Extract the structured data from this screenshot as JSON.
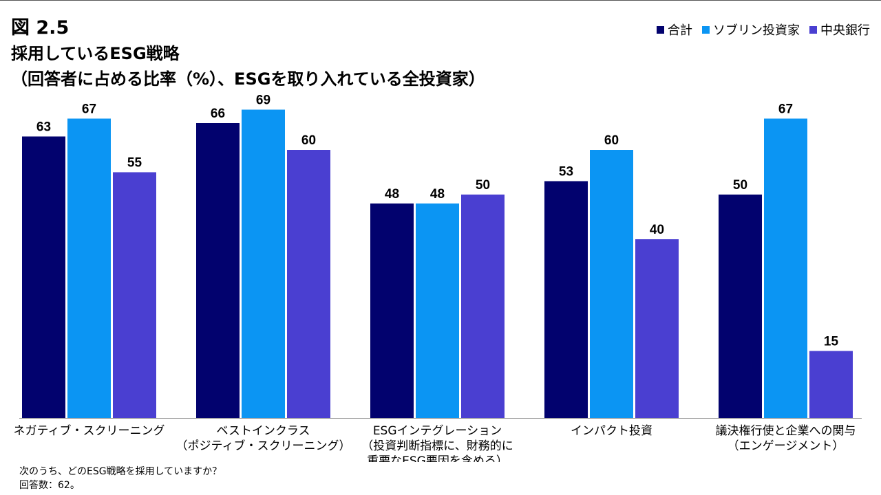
{
  "figure_label": "図 2.5",
  "title_line1": "採用しているESG戦略",
  "title_line2": "（回答者に占める比率（%）、ESGを取り入れている全投資家）",
  "footnote_line1": "次のうち、どのESG戦略を採用していますか？",
  "footnote_line2": "回答数：62。",
  "colors": {
    "total": "#02026e",
    "sovereign": "#0b95f3",
    "central_bank": "#4a3fd1",
    "axis": "#9a9a9a",
    "topline": "#555555"
  },
  "chart_data": {
    "type": "bar",
    "title": "採用しているESG戦略",
    "subtitle": "（回答者に占める比率（%）、ESGを取り入れている全投資家）",
    "xlabel": "",
    "ylabel": "",
    "ylim": [
      0,
      75
    ],
    "grid": false,
    "legend_position": "top-right",
    "categories": [
      {
        "lines": [
          "ネガティブ・スクリーニング"
        ]
      },
      {
        "lines": [
          "ベストインクラス",
          "（ポジティブ・スクリーニング）"
        ]
      },
      {
        "lines": [
          "ESGインテグレーション",
          "（投資判断指標に、財務的に",
          "重要なESG要因を含める）"
        ]
      },
      {
        "lines": [
          "インパクト投資"
        ]
      },
      {
        "lines": [
          "議決権行使と企業への関与",
          "（エンゲージメント）"
        ]
      }
    ],
    "series": [
      {
        "name": "合計",
        "values": [
          63,
          66,
          48,
          53,
          50
        ]
      },
      {
        "name": "ソブリン投資家",
        "values": [
          67,
          69,
          48,
          60,
          67
        ]
      },
      {
        "name": "中央銀行",
        "values": [
          55,
          60,
          50,
          40,
          15
        ]
      }
    ]
  }
}
